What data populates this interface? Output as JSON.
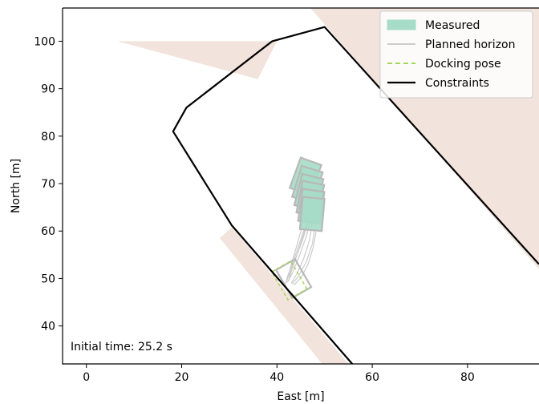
{
  "chart_data": {
    "type": "line",
    "xlabel": "East [m]",
    "ylabel": "North [m]",
    "xlim": [
      -5,
      95
    ],
    "ylim": [
      32,
      107
    ],
    "xticks": [
      0,
      20,
      40,
      60,
      80
    ],
    "yticks": [
      40,
      50,
      60,
      70,
      80,
      90,
      100
    ],
    "grid": false,
    "legend_position": "top-right",
    "annotation": "Initial time: 25.2 s",
    "obstacles": [
      {
        "points": [
          [
            6.5,
            100
          ],
          [
            40,
            100
          ],
          [
            36,
            92
          ]
        ],
        "color": "#f2e4dc"
      },
      {
        "points": [
          [
            47,
            107
          ],
          [
            95,
            107
          ],
          [
            95,
            52
          ]
        ],
        "color": "#f2e4dc"
      },
      {
        "points": [
          [
            28,
            58.5
          ],
          [
            30.5,
            60.8
          ],
          [
            55,
            32
          ],
          [
            49.5,
            32
          ]
        ],
        "color": "#f2e4dc"
      }
    ],
    "constraints": {
      "name": "Constraints",
      "color": "#000000",
      "points": [
        [
          55.8,
          32
        ],
        [
          30.5,
          61.2
        ],
        [
          18.2,
          81
        ],
        [
          21,
          86
        ],
        [
          39,
          100
        ],
        [
          50,
          103
        ],
        [
          95,
          53
        ]
      ]
    },
    "measured": {
      "name": "Measured",
      "fill": "#a6dcc8",
      "edge": "#b8b8b8",
      "poses": [
        {
          "x": 46,
          "y": 71.5,
          "heading": 20
        },
        {
          "x": 46.4,
          "y": 69.8,
          "heading": 17
        },
        {
          "x": 46.7,
          "y": 68.2,
          "heading": 14
        },
        {
          "x": 47,
          "y": 66.8,
          "heading": 11
        },
        {
          "x": 47.2,
          "y": 65.2,
          "heading": 8
        },
        {
          "x": 47.4,
          "y": 63.6,
          "heading": 5
        },
        {
          "x": 43.5,
          "y": 50,
          "heading": -30
        }
      ]
    },
    "planned_horizon": {
      "name": "Planned horizon",
      "color": "#cccccc",
      "lines": [
        [
          [
            47.4,
            63.6
          ],
          [
            46.2,
            59
          ],
          [
            44.8,
            55
          ],
          [
            43.4,
            51.5
          ],
          [
            42.2,
            49.2
          ]
        ],
        [
          [
            47.2,
            65.2
          ],
          [
            45.8,
            60
          ],
          [
            44.4,
            55.5
          ],
          [
            43.1,
            51.8
          ],
          [
            42.4,
            49.5
          ]
        ],
        [
          [
            47,
            66.8
          ],
          [
            45.3,
            61
          ],
          [
            43.9,
            56
          ],
          [
            42.8,
            52.2
          ],
          [
            42.6,
            49.8
          ]
        ],
        [
          [
            47.5,
            62.2
          ],
          [
            46.8,
            58
          ],
          [
            45.6,
            54.2
          ],
          [
            44.2,
            51
          ],
          [
            43,
            49
          ]
        ],
        [
          [
            48,
            61
          ],
          [
            47.4,
            57.2
          ],
          [
            46.2,
            53.6
          ],
          [
            44.6,
            50.6
          ],
          [
            43.2,
            48.8
          ]
        ],
        [
          [
            46.6,
            62
          ],
          [
            45.2,
            57.6
          ],
          [
            43.8,
            54
          ],
          [
            42.6,
            51
          ],
          [
            41.9,
            49.1
          ]
        ],
        [
          [
            48.2,
            59.8
          ],
          [
            47.6,
            56.5
          ],
          [
            46.6,
            53.2
          ],
          [
            45.2,
            50.4
          ],
          [
            43.6,
            48.6
          ]
        ],
        [
          [
            45.8,
            60.6
          ],
          [
            44.4,
            56.4
          ],
          [
            43.2,
            53
          ],
          [
            42.2,
            50.4
          ],
          [
            41.8,
            48.8
          ]
        ]
      ]
    },
    "docking_pose": {
      "name": "Docking pose",
      "color": "#a5d65a",
      "x": 42.6,
      "y": 49.6,
      "heading": -30
    }
  }
}
